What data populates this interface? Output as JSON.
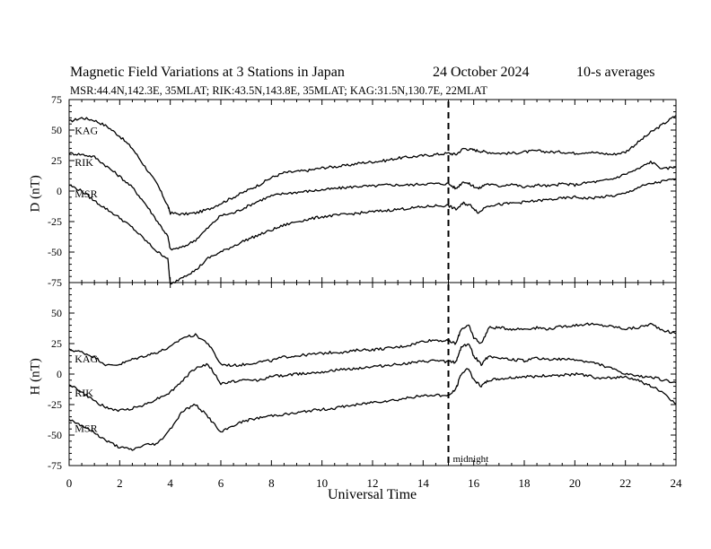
{
  "header": {
    "title": "Magnetic Field Variations at 3 Stations in Japan",
    "date": "24 October 2024",
    "averaging": "10-s averages",
    "stations_info": "MSR:44.4N,142.3E, 35MLAT;  RIK:43.5N,143.8E, 35MLAT;  KAG:31.5N,130.7E, 22MLAT"
  },
  "chart_data": [
    {
      "type": "line",
      "panel": "top",
      "ylabel": "D (nT)",
      "ylim": [
        -75,
        75
      ],
      "xlim": [
        0,
        24
      ],
      "yticks": [
        75,
        50,
        25,
        0,
        -25,
        -50,
        -75
      ],
      "yticklabels": [
        "75",
        "50",
        "25",
        "0",
        "-25",
        "-50",
        "-75"
      ],
      "xticks": [
        0,
        2,
        4,
        6,
        8,
        10,
        12,
        14,
        16,
        18,
        20,
        22,
        24
      ],
      "x": [
        0,
        0.5,
        1,
        1.5,
        2,
        2.5,
        3,
        3.5,
        3.9,
        4,
        4.5,
        5,
        5.5,
        6,
        6.5,
        7,
        7.5,
        8,
        8.5,
        9,
        9.5,
        10,
        10.5,
        11,
        11.5,
        12,
        12.5,
        13,
        13.5,
        14,
        14.5,
        15,
        15.3,
        15.6,
        15.9,
        16.2,
        16.5,
        17,
        17.5,
        18,
        18.5,
        19,
        19.5,
        20,
        20.5,
        21,
        21.5,
        22,
        22.5,
        23,
        23.5,
        24
      ],
      "series": [
        {
          "name": "KAG",
          "label_at": 0.15,
          "values": [
            57,
            60,
            58,
            53,
            45,
            35,
            20,
            5,
            -12,
            -18,
            -19,
            -18,
            -15,
            -10,
            -5,
            0,
            5,
            11,
            15,
            16,
            17,
            19,
            20,
            21,
            23,
            24,
            25,
            27,
            28,
            29,
            30,
            31,
            30,
            35,
            34,
            33,
            32,
            31,
            31,
            32,
            33,
            32,
            32,
            31,
            32,
            31,
            30,
            32,
            40,
            48,
            55,
            62
          ]
        },
        {
          "name": "RIK",
          "label_at": 0.15,
          "values": [
            31,
            30,
            28,
            20,
            12,
            3,
            -10,
            -25,
            -37,
            -48,
            -46,
            -40,
            -30,
            -20,
            -18,
            -13,
            -8,
            -4,
            -2,
            -1,
            0,
            1,
            2,
            3,
            4,
            4,
            5,
            5,
            5,
            6,
            6,
            6,
            2,
            8,
            5,
            2,
            6,
            4,
            6,
            3,
            5,
            4,
            6,
            5,
            7,
            8,
            10,
            14,
            18,
            24,
            18,
            20
          ]
        },
        {
          "name": "MSR",
          "label_at": 0.15,
          "values": [
            5,
            0,
            -8,
            -15,
            -22,
            -30,
            -40,
            -50,
            -55,
            -77,
            -70,
            -65,
            -55,
            -50,
            -45,
            -40,
            -36,
            -32,
            -28,
            -25,
            -23,
            -21,
            -20,
            -19,
            -18,
            -17,
            -16,
            -15,
            -14,
            -13,
            -12,
            -12,
            -15,
            -10,
            -12,
            -18,
            -12,
            -11,
            -10,
            -9,
            -8,
            -7,
            -6,
            -5,
            -6,
            -5,
            -4,
            -2,
            3,
            6,
            8,
            10
          ]
        }
      ]
    },
    {
      "type": "line",
      "panel": "bottom",
      "ylabel": "H (nT)",
      "ylim": [
        -75,
        75
      ],
      "xlim": [
        0,
        24
      ],
      "xlabel": "Universal Time",
      "yticks": [
        50,
        25,
        0,
        -25,
        -50,
        -75
      ],
      "yticklabels": [
        "50",
        "25",
        "0",
        "-25",
        "-50",
        "-75"
      ],
      "xticks": [
        0,
        2,
        4,
        6,
        8,
        10,
        12,
        14,
        16,
        18,
        20,
        22,
        24
      ],
      "xticklabels": [
        "0",
        "2",
        "4",
        "6",
        "8",
        "10",
        "12",
        "14",
        "16",
        "18",
        "20",
        "22",
        "24"
      ],
      "x": [
        0,
        0.5,
        1,
        1.5,
        2,
        2.5,
        3,
        3.5,
        4,
        4.5,
        5,
        5.5,
        6,
        6.5,
        7,
        7.5,
        8,
        8.5,
        9,
        9.5,
        10,
        10.5,
        11,
        11.5,
        12,
        12.5,
        13,
        13.5,
        14,
        14.5,
        15,
        15.3,
        15.5,
        15.8,
        16,
        16.3,
        16.6,
        17,
        17.5,
        18,
        18.5,
        19,
        19.5,
        20,
        20.5,
        21,
        21.5,
        22,
        22.5,
        23,
        23.5,
        24
      ],
      "series": [
        {
          "name": "KAG",
          "label_at": 0.15,
          "values": [
            20,
            18,
            14,
            7,
            8,
            12,
            15,
            18,
            22,
            30,
            32,
            25,
            8,
            7,
            8,
            10,
            11,
            14,
            15,
            16,
            17,
            18,
            18,
            20,
            20,
            21,
            22,
            24,
            27,
            28,
            27,
            25,
            37,
            40,
            30,
            25,
            38,
            38,
            37,
            37,
            38,
            37,
            39,
            40,
            41,
            40,
            39,
            37,
            38,
            41,
            36,
            33
          ]
        },
        {
          "name": "RIK",
          "label_at": 0.15,
          "values": [
            -8,
            -15,
            -22,
            -28,
            -30,
            -28,
            -25,
            -20,
            -15,
            -5,
            5,
            8,
            -8,
            -6,
            -5,
            -5,
            -2,
            -1,
            0,
            1,
            2,
            3,
            4,
            5,
            6,
            7,
            8,
            9,
            10,
            11,
            10,
            10,
            22,
            25,
            15,
            8,
            15,
            13,
            12,
            11,
            13,
            12,
            12,
            12,
            10,
            8,
            4,
            0,
            -2,
            -2,
            -5,
            -7
          ]
        },
        {
          "name": "MSR",
          "label_at": 0.15,
          "values": [
            -37,
            -42,
            -48,
            -55,
            -60,
            -62,
            -58,
            -57,
            -45,
            -30,
            -25,
            -35,
            -48,
            -42,
            -38,
            -36,
            -34,
            -33,
            -32,
            -30,
            -29,
            -28,
            -26,
            -25,
            -23,
            -22,
            -21,
            -19,
            -18,
            -17,
            -18,
            -12,
            0,
            5,
            -5,
            -10,
            -5,
            -4,
            -3,
            -2,
            -2,
            -1,
            -1,
            0,
            -1,
            -4,
            -3,
            -2,
            -5,
            -10,
            -15,
            -25
          ]
        }
      ]
    }
  ],
  "xaxis_label": "Universal Time",
  "annotation_midnight": "midnight",
  "midnight_ut": 15,
  "colors": {
    "line": "#000000",
    "background": "#ffffff"
  }
}
